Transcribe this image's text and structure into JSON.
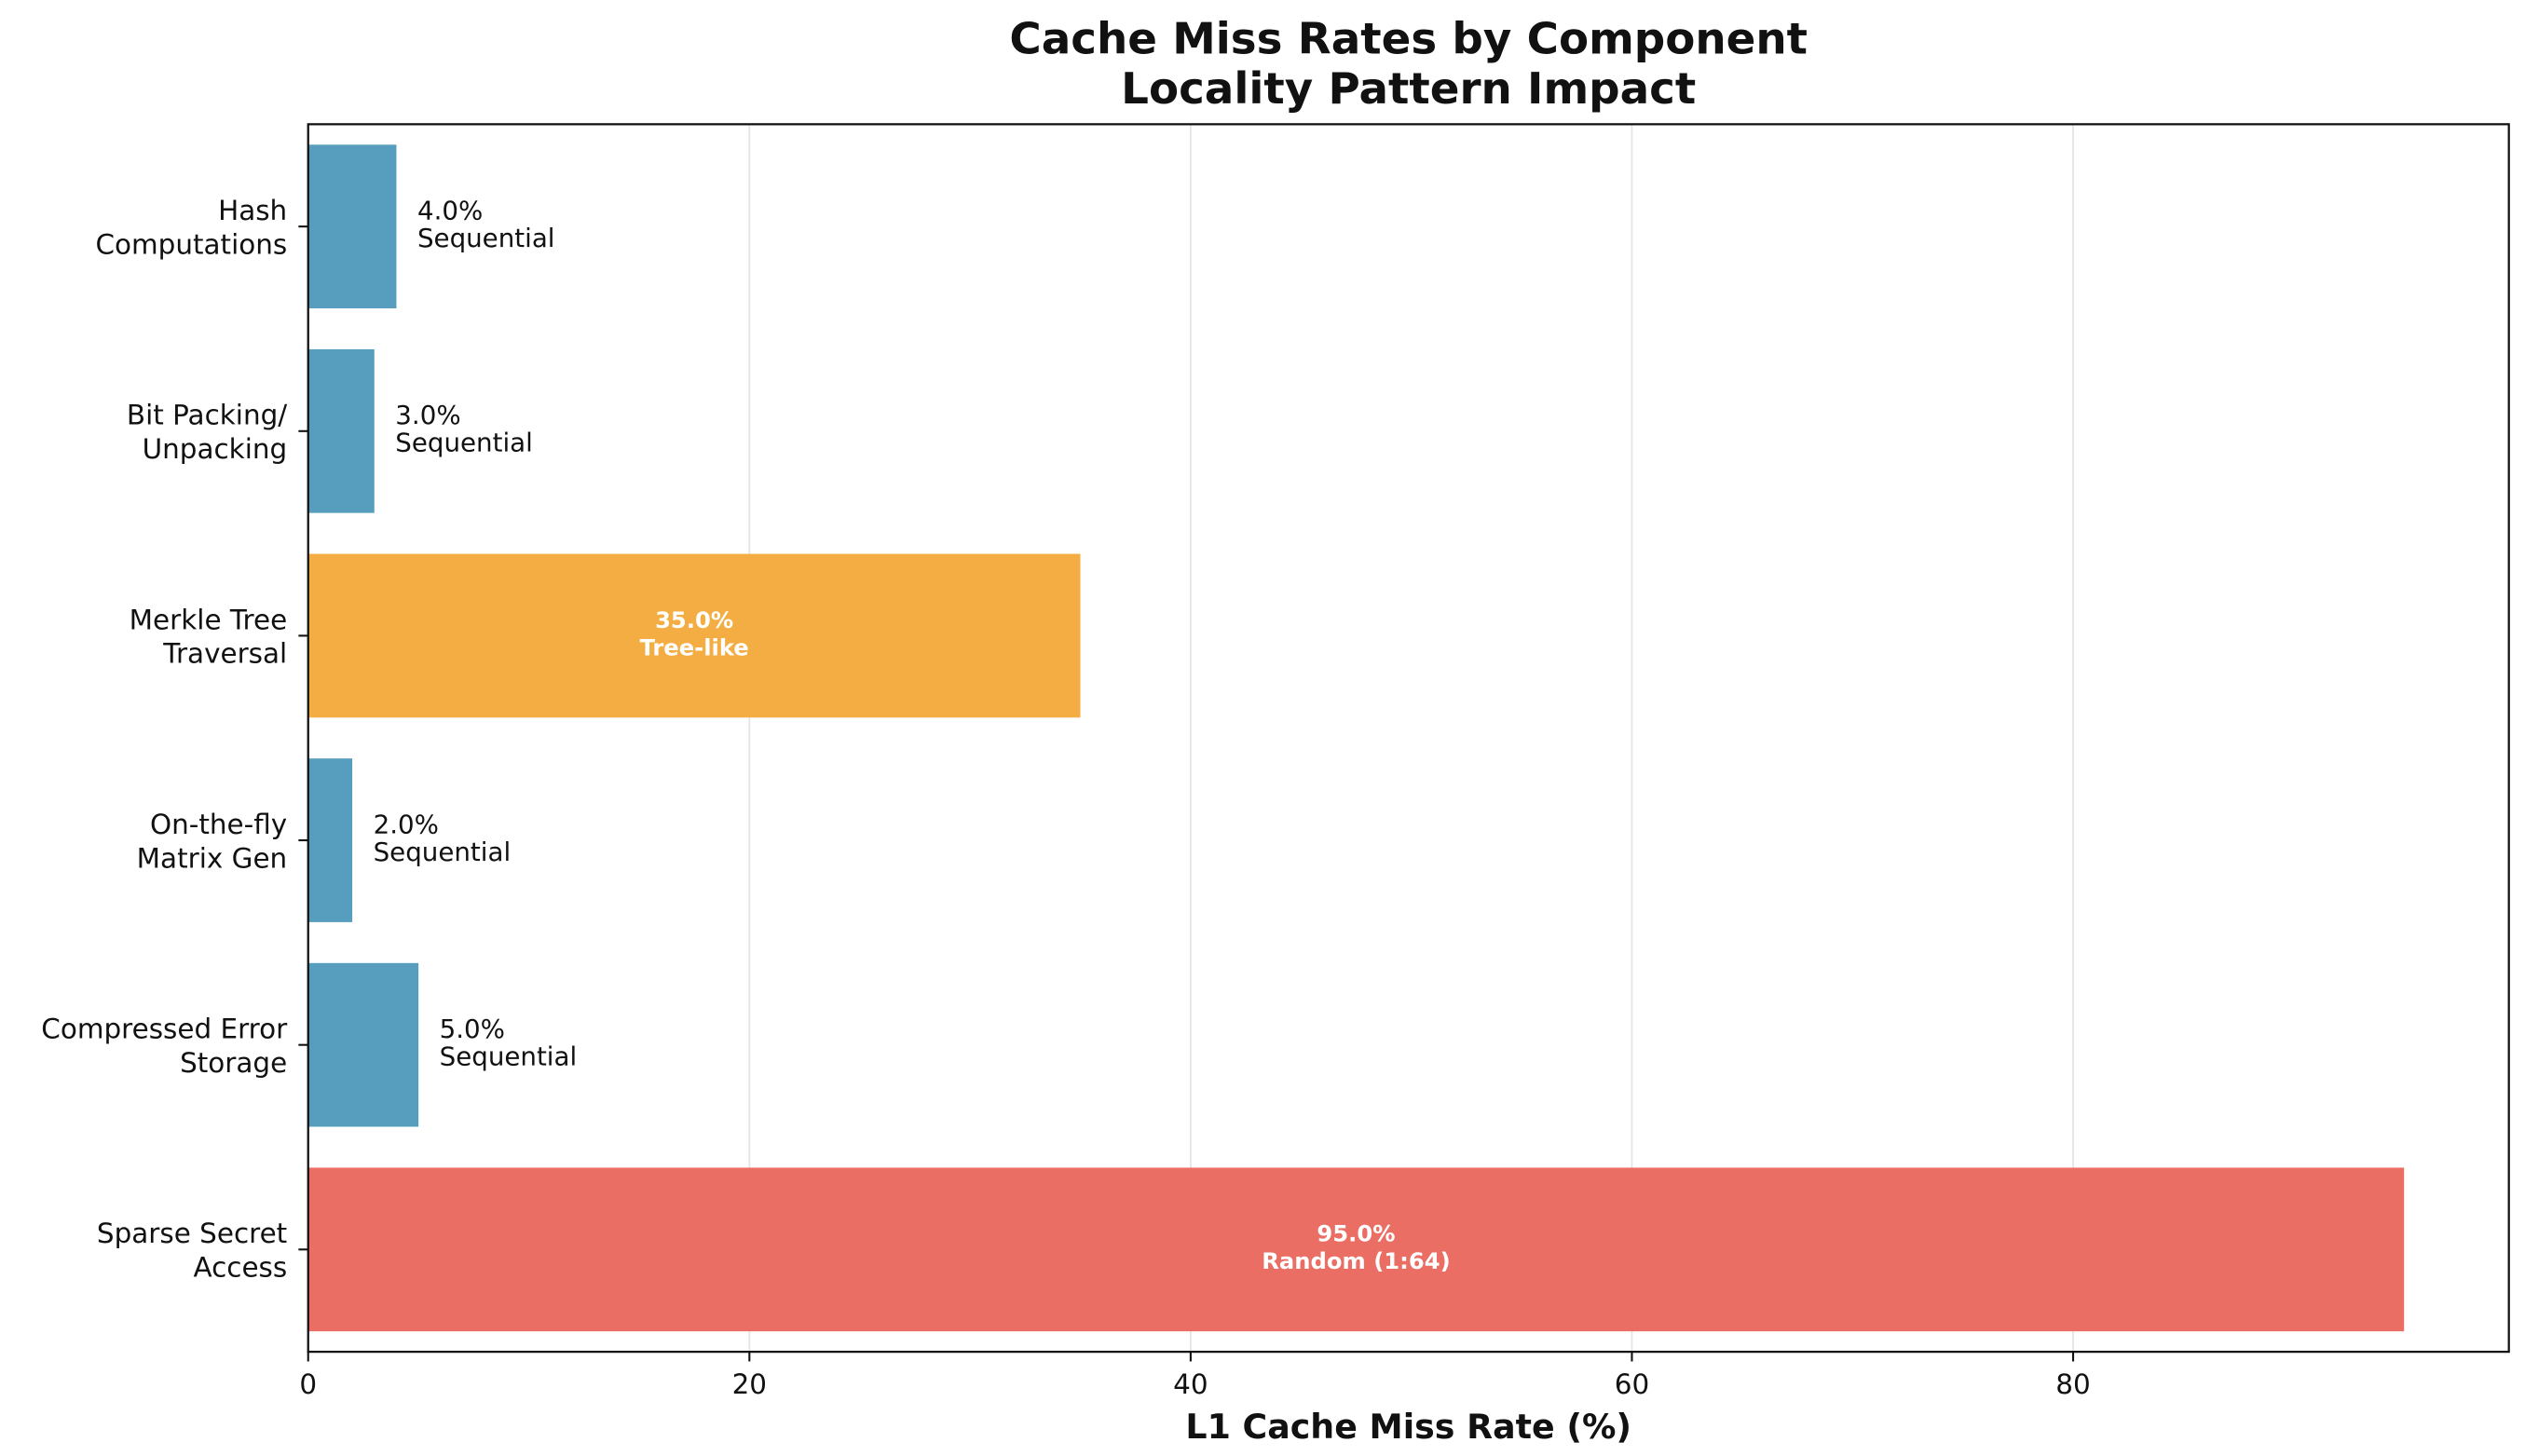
{
  "chart_data": {
    "type": "barh",
    "title": [
      "Cache Miss Rates by Component",
      "Locality Pattern Impact"
    ],
    "categories": [
      [
        "Hash",
        "Computations"
      ],
      [
        "Bit Packing/",
        "Unpacking"
      ],
      [
        "Merkle Tree",
        "Traversal"
      ],
      [
        "On-the-fly",
        "Matrix Gen"
      ],
      [
        "Compressed Error",
        "Storage"
      ],
      [
        "Sparse Secret",
        "Access"
      ]
    ],
    "values": [
      4.0,
      3.0,
      35.0,
      2.0,
      5.0,
      95.0
    ],
    "value_labels": [
      "4.0%",
      "3.0%",
      "35.0%",
      "2.0%",
      "5.0%",
      "95.0%"
    ],
    "patterns": [
      "Sequential",
      "Sequential",
      "Tree-like",
      "Sequential",
      "Sequential",
      "Random (1:64)"
    ],
    "colors": [
      "#579dbe",
      "#579dbe",
      "#f4ad42",
      "#579dbe",
      "#579dbe",
      "#ea6e64"
    ],
    "xlabel": "L1 Cache Miss Rate (%)",
    "xlim": [
      0,
      99.75
    ],
    "xticks": [
      0,
      20,
      40,
      60,
      80
    ],
    "grid": true
  }
}
